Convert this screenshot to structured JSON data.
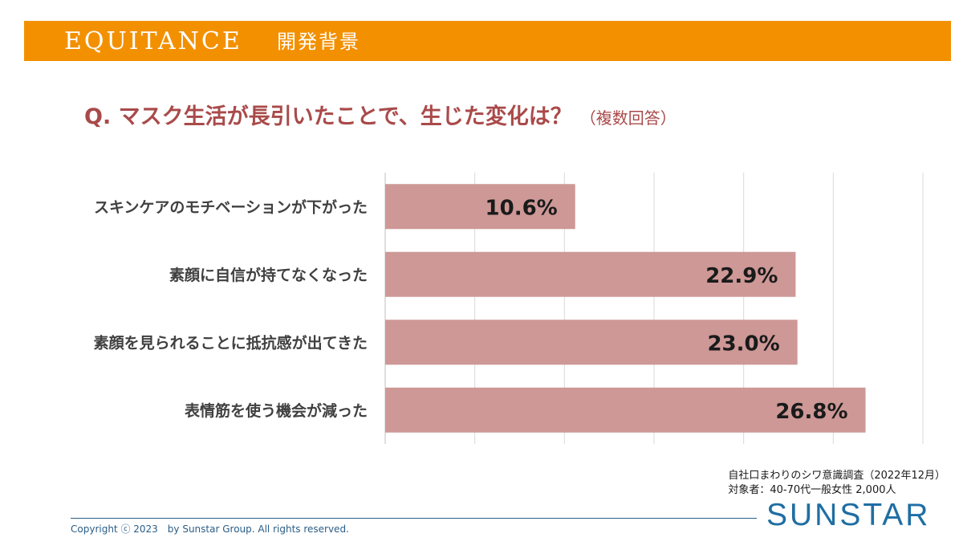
{
  "header": {
    "brand": "EQUITANCE",
    "section_title": "開発背景",
    "color": "#f39000"
  },
  "question": {
    "text": "Q. マスク生活が長引いたことで、生じた変化は？",
    "note": "（複数回答）"
  },
  "chart_data": {
    "type": "bar",
    "orientation": "horizontal",
    "categories": [
      "スキンケアのモチベーションが下がった",
      "素顔に自信が持てなくなった",
      "素顔を見られることに抵抗感が出てきた",
      "表情筋を使う機会が減った"
    ],
    "values": [
      10.6,
      22.9,
      23.0,
      26.8
    ],
    "value_labels": [
      "10.6%",
      "22.9%",
      "23.0%",
      "26.8%"
    ],
    "xlim": [
      0,
      30
    ],
    "grid": true,
    "bar_color": "#cd9896"
  },
  "source": {
    "line1": "自社口まわりのシワ意識調査（2022年12月）",
    "line2": "対象者：40-70代一般女性 2,000人"
  },
  "footer": {
    "copyright": "Copyright ⓒ 2023　by Sunstar Group. All rights reserved.",
    "logo": "SUNSTAR"
  }
}
